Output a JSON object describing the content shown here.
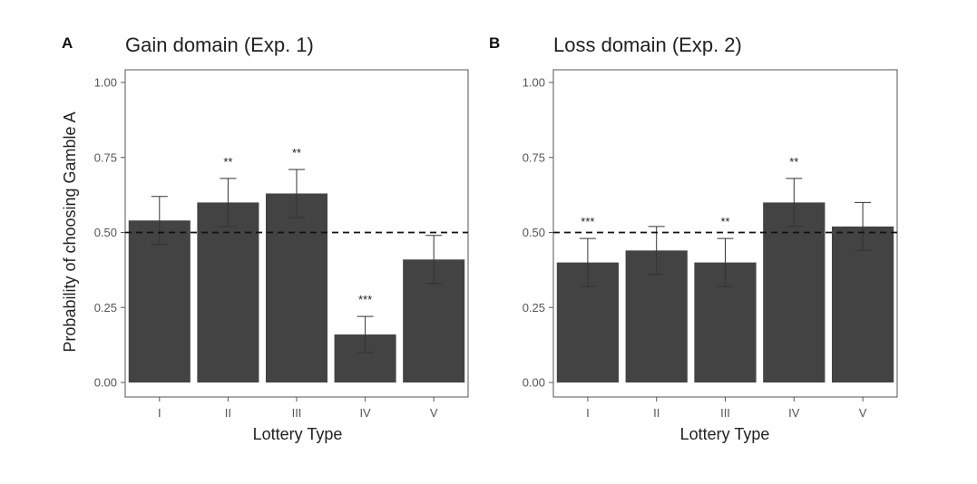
{
  "chart_data": [
    {
      "type": "bar",
      "panel_label": "A",
      "title": "Gain domain (Exp. 1)",
      "xlabel": "Lottery Type",
      "ylabel": "Probability of choosing Gamble A",
      "categories": [
        "I",
        "II",
        "III",
        "IV",
        "V"
      ],
      "values": [
        0.54,
        0.6,
        0.63,
        0.16,
        0.41
      ],
      "error_lower": [
        0.46,
        0.52,
        0.55,
        0.1,
        0.33
      ],
      "error_upper": [
        0.62,
        0.68,
        0.71,
        0.22,
        0.49
      ],
      "significance": [
        "",
        "**",
        "**",
        "***",
        ""
      ],
      "reference_line": 0.5,
      "ylim": [
        0,
        1
      ],
      "yticks": [
        0,
        0.25,
        0.5,
        0.75,
        1
      ],
      "ytick_labels": [
        "0.00",
        "0.25",
        "0.50",
        "0.75",
        "1.00"
      ],
      "grid": false,
      "bar_color": "#434343"
    },
    {
      "type": "bar",
      "panel_label": "B",
      "title": "Loss domain (Exp. 2)",
      "xlabel": "Lottery Type",
      "ylabel": "",
      "categories": [
        "I",
        "II",
        "III",
        "IV",
        "V"
      ],
      "values": [
        0.4,
        0.44,
        0.4,
        0.6,
        0.52
      ],
      "error_lower": [
        0.32,
        0.36,
        0.32,
        0.52,
        0.44
      ],
      "error_upper": [
        0.48,
        0.52,
        0.48,
        0.68,
        0.6
      ],
      "significance": [
        "***",
        "",
        "**",
        "**",
        ""
      ],
      "reference_line": 0.5,
      "ylim": [
        0,
        1
      ],
      "yticks": [
        0,
        0.25,
        0.5,
        0.75,
        1
      ],
      "ytick_labels": [
        "0.00",
        "0.25",
        "0.50",
        "0.75",
        "1.00"
      ],
      "grid": false,
      "bar_color": "#434343"
    }
  ]
}
